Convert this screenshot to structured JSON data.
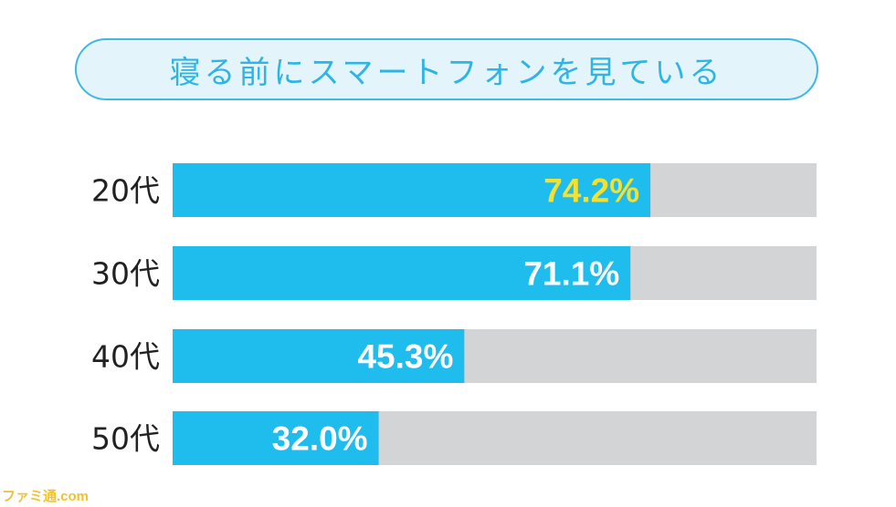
{
  "chart_data": {
    "type": "bar",
    "orientation": "horizontal",
    "title": "寝る前にスマートフォンを見ている",
    "categories": [
      "20代",
      "30代",
      "40代",
      "50代"
    ],
    "values": [
      74.2,
      71.1,
      45.3,
      32.0
    ],
    "value_labels": [
      "74.2%",
      "71.1%",
      "45.3%",
      "32.0%"
    ],
    "xlim": [
      0,
      100
    ],
    "unit": "%",
    "grid": false,
    "legend": "none",
    "colors": {
      "bar": "#1fbcee",
      "track": "#d2d4d6",
      "label_highlight": "#f5e12d",
      "label_default": "#ffffff"
    },
    "highlight_index": 0
  },
  "watermark": "ファミ通.com"
}
